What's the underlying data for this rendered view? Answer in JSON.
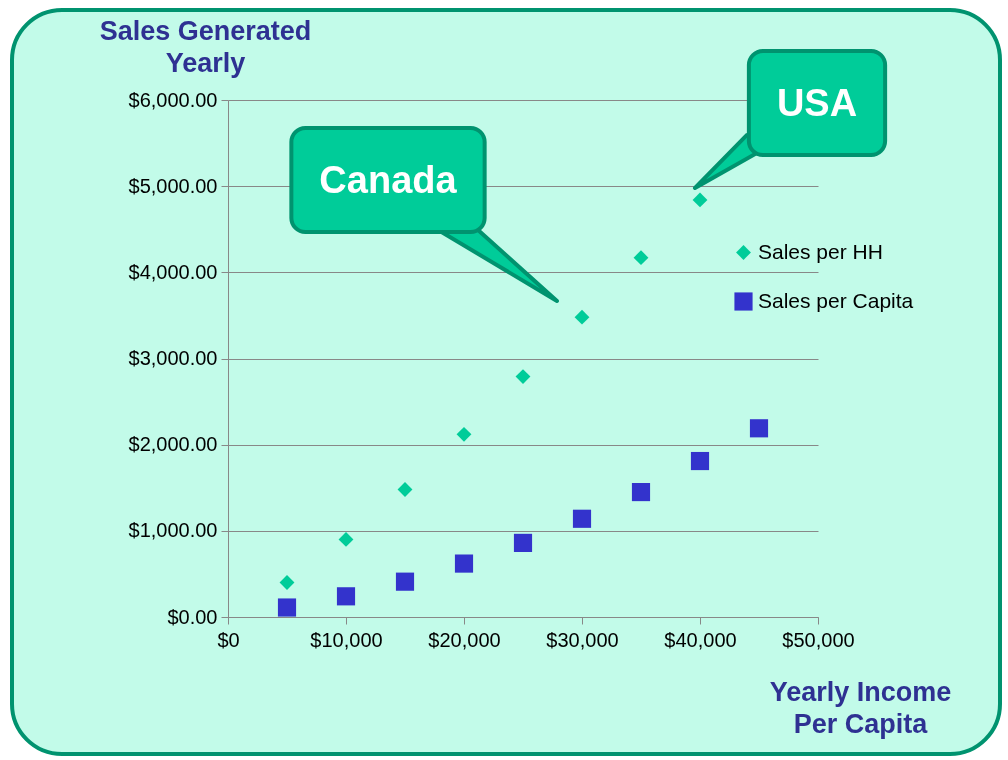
{
  "chart_data": {
    "type": "scatter",
    "xlabel": "Yearly Income Per Capita",
    "ylabel": "Sales Generated Yearly",
    "series": [
      {
        "name": "Sales per HH",
        "color": "#00cc99",
        "marker": "diamond",
        "x": [
          5000,
          10000,
          15000,
          20000,
          25000,
          30000,
          35000,
          40000
        ],
        "values": [
          400,
          900,
          1480,
          2120,
          2790,
          3480,
          4170,
          4840
        ]
      },
      {
        "name": "Sales per Capita",
        "color": "#3333cc",
        "marker": "square",
        "x": [
          5000,
          10000,
          15000,
          20000,
          25000,
          30000,
          35000,
          40000,
          45000
        ],
        "values": [
          110,
          240,
          410,
          620,
          860,
          1140,
          1450,
          1810,
          2190
        ]
      }
    ],
    "xlim": [
      0,
      50000
    ],
    "xticks": [
      {
        "value": 0,
        "label": "$0"
      },
      {
        "value": 10000,
        "label": "$10,000"
      },
      {
        "value": 20000,
        "label": "$20,000"
      },
      {
        "value": 30000,
        "label": "$30,000"
      },
      {
        "value": 40000,
        "label": "$40,000"
      },
      {
        "value": 50000,
        "label": "$50,000"
      }
    ],
    "ylim": [
      0,
      6000
    ],
    "yticks": [
      {
        "value": 0,
        "label": "$0.00"
      },
      {
        "value": 1000,
        "label": "$1,000.00"
      },
      {
        "value": 2000,
        "label": "$2,000.00"
      },
      {
        "value": 3000,
        "label": "$3,000.00"
      },
      {
        "value": 4000,
        "label": "$4,000.00"
      },
      {
        "value": 5000,
        "label": "$5,000.00"
      },
      {
        "value": 6000,
        "label": "$6,000.00"
      }
    ],
    "grid": "y",
    "legend": "right",
    "annotations": [
      "Canada",
      {
        "text": "USA",
        "x": 40000,
        "y": 4840
      }
    ]
  }
}
